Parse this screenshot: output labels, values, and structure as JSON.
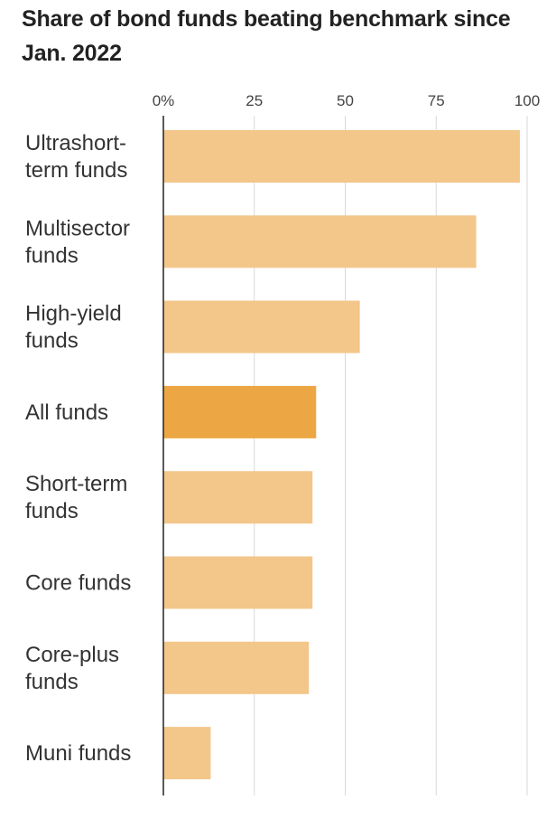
{
  "chart_data": {
    "type": "bar",
    "orientation": "horizontal",
    "title": "Share of bond funds beating benchmark since Jan. 2022",
    "xlabel": "",
    "ylabel": "",
    "xlim": [
      0,
      100
    ],
    "ticks": [
      "0%",
      "25",
      "50",
      "75",
      "100"
    ],
    "tick_values": [
      0,
      25,
      50,
      75,
      100
    ],
    "grid": true,
    "categories": [
      [
        "Ultrashort-",
        "term funds"
      ],
      [
        "Multisector",
        "funds"
      ],
      [
        "High-yield",
        "funds"
      ],
      [
        "All funds"
      ],
      [
        "Short-term",
        "funds"
      ],
      [
        "Core funds"
      ],
      [
        "Core-plus",
        "funds"
      ],
      [
        "Muni funds"
      ]
    ],
    "values": [
      98,
      86,
      54,
      42,
      41,
      41,
      40,
      13
    ],
    "highlight_index": 3,
    "colors": {
      "bar": "#f3c68a",
      "highlight": "#eca744",
      "grid": "#d9d9d9",
      "axis": "#222222"
    }
  }
}
